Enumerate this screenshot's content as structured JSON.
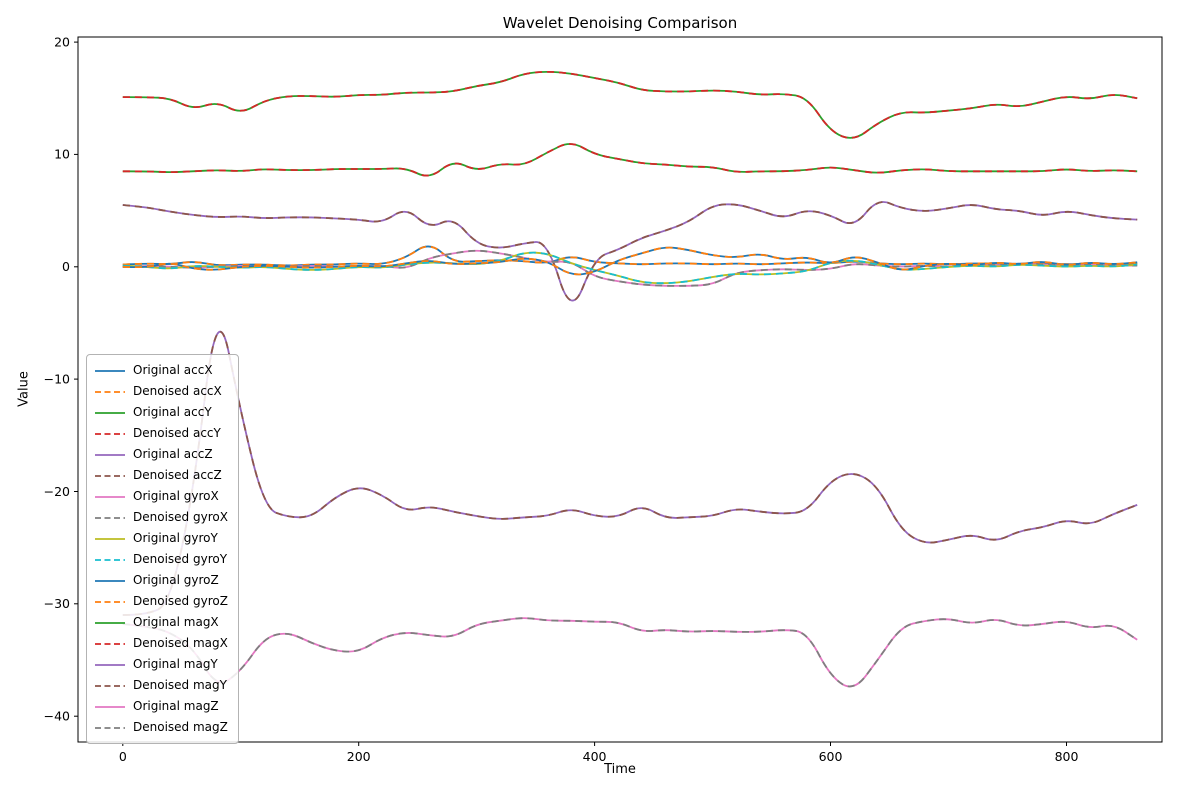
{
  "chart_data": {
    "type": "line",
    "title": "Wavelet Denoising Comparison",
    "xlabel": "Time",
    "ylabel": "Value",
    "xlim": [
      -38,
      881
    ],
    "ylim": [
      -42.3,
      20.45
    ],
    "xticks": [
      0,
      200,
      400,
      600,
      800
    ],
    "yticks": [
      20,
      10,
      0,
      -10,
      -20,
      -30,
      -40
    ],
    "grid": false,
    "legend_position": "lower left",
    "x": [
      0,
      20,
      40,
      60,
      80,
      100,
      120,
      140,
      160,
      180,
      200,
      220,
      240,
      260,
      280,
      300,
      320,
      340,
      360,
      380,
      400,
      420,
      440,
      460,
      480,
      500,
      520,
      540,
      560,
      580,
      600,
      620,
      640,
      660,
      680,
      700,
      720,
      740,
      760,
      780,
      800,
      820,
      840,
      860
    ],
    "channels": [
      {
        "id": "accX",
        "original_label": "Original accX",
        "denoised_label": "Denoised accX",
        "original_color": "#1f77b4",
        "denoised_color": "#ff7f0e",
        "values": [
          0.2,
          0.3,
          0.2,
          0.5,
          0.1,
          0.2,
          0.2,
          0.1,
          0.2,
          0.2,
          0.3,
          0.2,
          0.8,
          2.2,
          0.4,
          0.5,
          0.6,
          0.5,
          0.3,
          1.0,
          0.4,
          0.3,
          0.2,
          0.3,
          0.3,
          0.2,
          0.3,
          0.2,
          0.3,
          0.4,
          0.3,
          0.5,
          0.3,
          0.2,
          0.3,
          0.2,
          0.3,
          0.3,
          0.2,
          0.3,
          0.2,
          0.3,
          0.2,
          0.3
        ]
      },
      {
        "id": "accY",
        "original_label": "Original accY",
        "denoised_label": "Denoised accY",
        "original_color": "#2ca02c",
        "denoised_color": "#d62728",
        "values": [
          8.5,
          8.5,
          8.4,
          8.5,
          8.6,
          8.5,
          8.7,
          8.6,
          8.6,
          8.7,
          8.7,
          8.7,
          8.8,
          7.8,
          9.5,
          8.5,
          9.2,
          9.0,
          10.2,
          11.2,
          10.0,
          9.6,
          9.2,
          9.1,
          8.9,
          8.9,
          8.4,
          8.5,
          8.5,
          8.6,
          8.9,
          8.6,
          8.3,
          8.6,
          8.7,
          8.5,
          8.5,
          8.5,
          8.5,
          8.5,
          8.7,
          8.5,
          8.6,
          8.5
        ]
      },
      {
        "id": "accZ",
        "original_label": "Original accZ",
        "denoised_label": "Denoised accZ",
        "original_color": "#9467bd",
        "denoised_color": "#8c564b",
        "values": [
          5.5,
          5.3,
          4.9,
          4.6,
          4.4,
          4.5,
          4.3,
          4.4,
          4.4,
          4.3,
          4.2,
          3.9,
          5.3,
          3.4,
          4.4,
          2.0,
          1.6,
          2.1,
          2.3,
          -4.5,
          0.8,
          1.5,
          2.6,
          3.2,
          4.0,
          5.5,
          5.6,
          5.0,
          4.3,
          5.1,
          4.6,
          3.5,
          6.1,
          5.2,
          4.9,
          5.2,
          5.6,
          5.1,
          5.0,
          4.5,
          5.0,
          4.6,
          4.3,
          4.2
        ]
      },
      {
        "id": "gyroX",
        "original_label": "Original gyroX",
        "denoised_label": "Denoised gyroX",
        "original_color": "#e377c2",
        "denoised_color": "#7f7f7f",
        "values": [
          0.0,
          0.1,
          0.0,
          -0.1,
          0.0,
          0.1,
          0.0,
          0.0,
          0.1,
          0.0,
          0.0,
          0.1,
          -0.2,
          0.8,
          1.2,
          1.5,
          1.2,
          0.8,
          0.4,
          0.5,
          -0.9,
          -1.3,
          -1.6,
          -1.7,
          -1.7,
          -1.6,
          -0.5,
          -0.3,
          -0.2,
          -0.3,
          -0.2,
          0.3,
          0.1,
          0.0,
          0.1,
          0.0,
          0.2,
          0.1,
          0.3,
          0.2,
          0.1,
          0.2,
          0.1,
          0.1
        ]
      },
      {
        "id": "gyroY",
        "original_label": "Original gyroY",
        "denoised_label": "Denoised gyroY",
        "original_color": "#bcbd22",
        "denoised_color": "#17becf",
        "values": [
          0.1,
          0.0,
          -0.2,
          0.1,
          0.0,
          -0.1,
          0.0,
          -0.2,
          -0.3,
          -0.2,
          0.0,
          -0.1,
          0.2,
          0.4,
          0.3,
          0.2,
          0.5,
          1.3,
          1.2,
          0.3,
          -0.3,
          -0.8,
          -1.4,
          -1.5,
          -1.3,
          -0.9,
          -0.6,
          -0.7,
          -0.6,
          -0.4,
          0.4,
          0.6,
          0.2,
          -0.3,
          -0.2,
          0.0,
          0.1,
          0.0,
          0.2,
          0.1,
          0.0,
          0.1,
          0.0,
          0.2
        ]
      },
      {
        "id": "gyroZ",
        "original_label": "Original gyroZ",
        "denoised_label": "Denoised gyroZ",
        "original_color": "#1f77b4",
        "denoised_color": "#ff7f0e",
        "values": [
          0.0,
          -0.1,
          0.4,
          -0.2,
          -0.3,
          0.0,
          0.1,
          0.0,
          -0.1,
          0.0,
          0.1,
          0.0,
          0.3,
          0.6,
          0.2,
          0.3,
          0.4,
          0.8,
          0.5,
          -0.8,
          -0.5,
          0.6,
          1.2,
          1.8,
          1.5,
          1.0,
          0.8,
          1.2,
          0.6,
          0.9,
          0.2,
          1.0,
          0.4,
          -0.4,
          0.1,
          0.3,
          0.1,
          0.4,
          0.2,
          0.5,
          0.1,
          0.4,
          0.2,
          0.4
        ]
      },
      {
        "id": "magX",
        "original_label": "Original magX",
        "denoised_label": "Denoised magX",
        "original_color": "#2ca02c",
        "denoised_color": "#d62728",
        "values": [
          15.1,
          15.1,
          15.0,
          14.0,
          14.7,
          13.6,
          14.8,
          15.2,
          15.2,
          15.1,
          15.3,
          15.3,
          15.5,
          15.5,
          15.6,
          16.1,
          16.4,
          17.2,
          17.4,
          17.2,
          16.8,
          16.4,
          15.7,
          15.6,
          15.6,
          15.7,
          15.6,
          15.3,
          15.4,
          15.1,
          12.0,
          11.2,
          12.8,
          13.8,
          13.7,
          13.9,
          14.1,
          14.5,
          14.2,
          14.7,
          15.2,
          14.9,
          15.4,
          15.0
        ]
      },
      {
        "id": "magY",
        "original_label": "Original magY",
        "denoised_label": "Denoised magY",
        "original_color": "#9467bd",
        "denoised_color": "#8c564b",
        "values": [
          -31.0,
          -31.0,
          -30.0,
          -20.0,
          -2.5,
          -13.0,
          -21.5,
          -22.3,
          -22.3,
          -20.5,
          -19.5,
          -20.3,
          -21.8,
          -21.3,
          -21.8,
          -22.2,
          -22.5,
          -22.3,
          -22.2,
          -21.5,
          -22.2,
          -22.3,
          -21.2,
          -22.4,
          -22.3,
          -22.2,
          -21.5,
          -21.8,
          -22.0,
          -21.8,
          -19.0,
          -18.2,
          -19.5,
          -23.5,
          -24.7,
          -24.3,
          -23.8,
          -24.5,
          -23.5,
          -23.2,
          -22.5,
          -23.0,
          -22.0,
          -21.2
        ]
      },
      {
        "id": "magZ",
        "original_label": "Original magZ",
        "denoised_label": "Denoised magZ",
        "original_color": "#e377c2",
        "denoised_color": "#7f7f7f",
        "values": [
          -31.8,
          -32.0,
          -32.5,
          -34.0,
          -37.5,
          -36.0,
          -33.0,
          -32.5,
          -33.5,
          -34.2,
          -34.3,
          -33.0,
          -32.5,
          -32.8,
          -33.0,
          -31.8,
          -31.5,
          -31.2,
          -31.5,
          -31.5,
          -31.6,
          -31.6,
          -32.5,
          -32.3,
          -32.5,
          -32.4,
          -32.5,
          -32.5,
          -32.3,
          -32.5,
          -36.5,
          -37.8,
          -35.0,
          -32.0,
          -31.5,
          -31.3,
          -31.8,
          -31.3,
          -32.0,
          -31.8,
          -31.5,
          -32.2,
          -31.8,
          -33.2
        ]
      }
    ]
  }
}
